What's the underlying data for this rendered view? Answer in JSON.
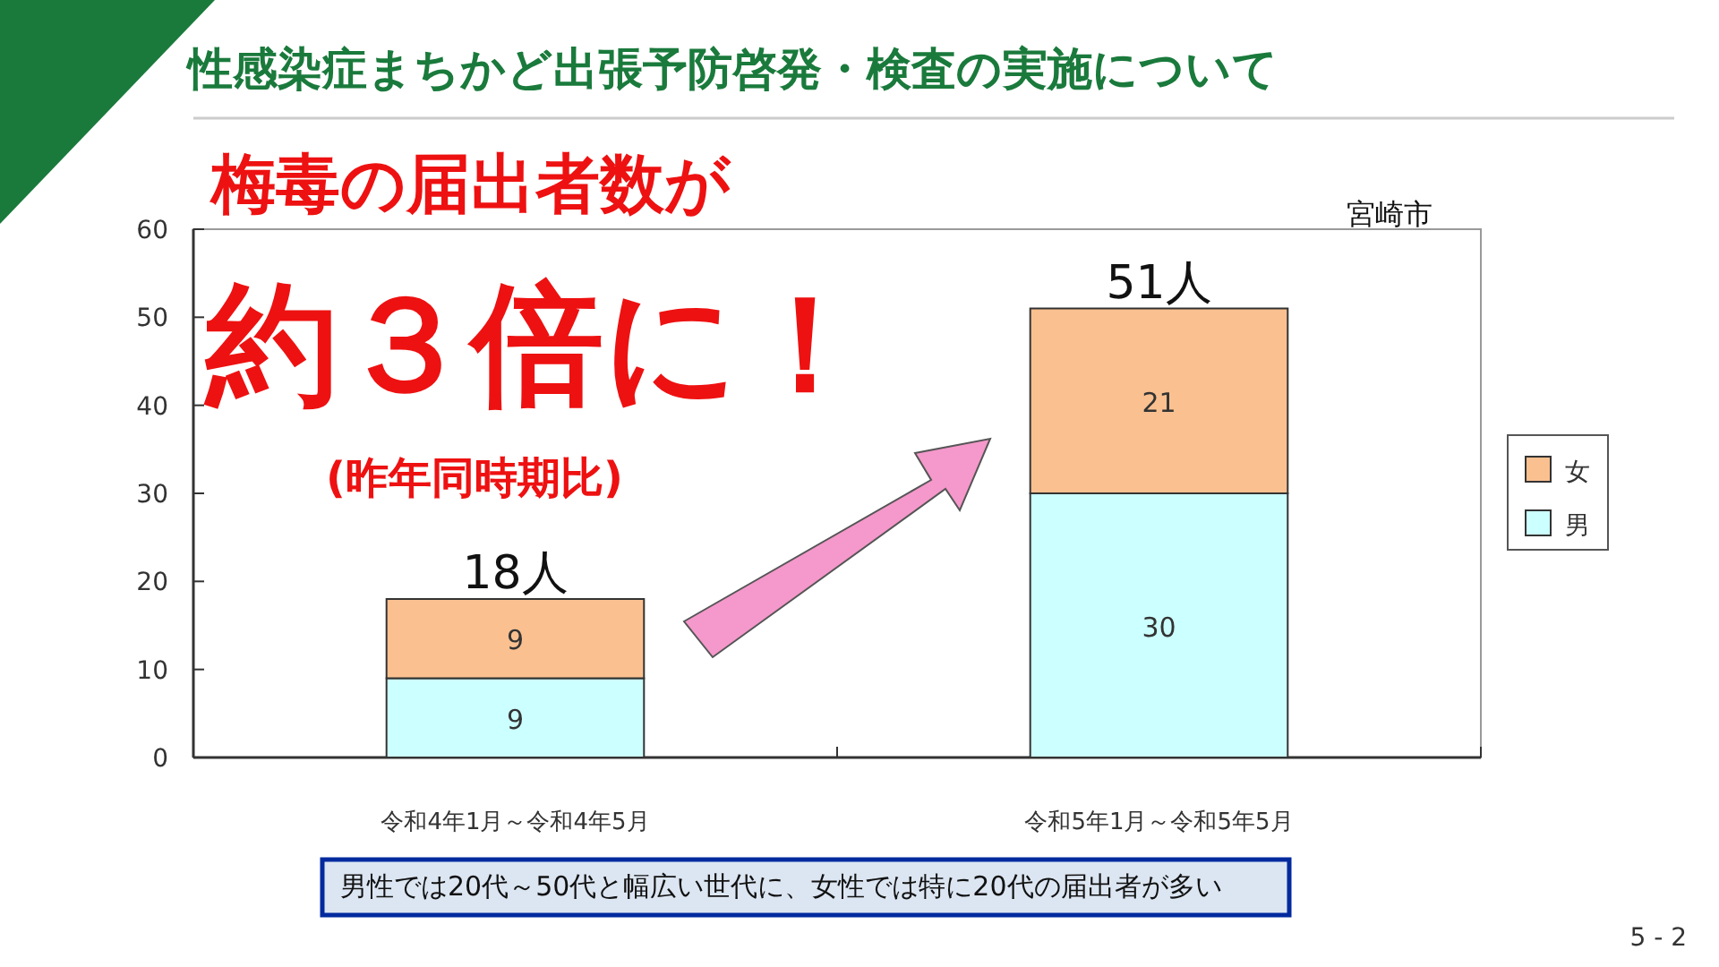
{
  "chart_data": {
    "type": "bar",
    "title": "性感染症まちかど出張予防啓発・検査の実施について",
    "categories": [
      "令和4年1月～令和4年5月",
      "令和5年1月～令和5年5月"
    ],
    "stacked": true,
    "series": [
      {
        "name": "男",
        "color": "#ccffff",
        "values": [
          9,
          30
        ]
      },
      {
        "name": "女",
        "color": "#fac090",
        "values": [
          9,
          21
        ]
      }
    ],
    "ylim": [
      0,
      60
    ],
    "yticks": [
      0,
      10,
      20,
      30,
      40,
      50,
      60
    ],
    "data_labels": true,
    "totals": [
      "18人",
      "51人"
    ],
    "legend": "right",
    "grid": false,
    "annotations": [
      "梅毒の届出者数が",
      "約３倍に！",
      "(昨年同時期比)",
      "宮崎市",
      "男性では20代～50代と幅広い世代に、女性では特に20代の届出者が多い",
      "5 - 2"
    ]
  }
}
